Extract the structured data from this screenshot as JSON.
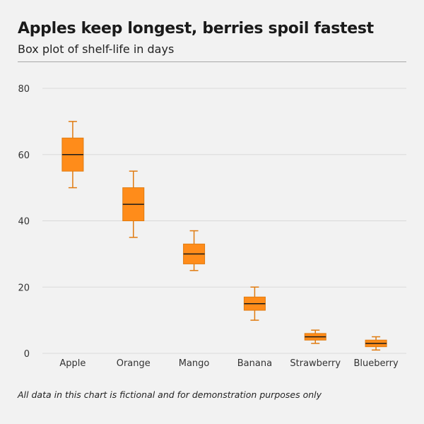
{
  "header": {
    "title": "Apples keep longest, berries spoil fastest",
    "subtitle": "Box plot of shelf-life in days"
  },
  "footnote": "All data in this chart is fictional and for demonstration purposes only",
  "colors": {
    "box_fill": "#ff8c1a",
    "box_stroke": "#e07b10",
    "median": "#1a1a1a",
    "grid": "#d9d9d9"
  },
  "chart_data": {
    "type": "box",
    "title": "Apples keep longest, berries spoil fastest",
    "subtitle": "Box plot of shelf-life in days",
    "xlabel": "",
    "ylabel": "",
    "ylim": [
      0,
      80
    ],
    "yticks": [
      0,
      20,
      40,
      60,
      80
    ],
    "grid": true,
    "categories": [
      "Apple",
      "Orange",
      "Mango",
      "Banana",
      "Strawberry",
      "Blueberry"
    ],
    "series": [
      {
        "name": "Apple",
        "min": 50,
        "q1": 55,
        "median": 60,
        "q3": 65,
        "max": 70
      },
      {
        "name": "Orange",
        "min": 35,
        "q1": 40,
        "median": 45,
        "q3": 50,
        "max": 55
      },
      {
        "name": "Mango",
        "min": 25,
        "q1": 27,
        "median": 30,
        "q3": 33,
        "max": 37
      },
      {
        "name": "Banana",
        "min": 10,
        "q1": 13,
        "median": 15,
        "q3": 17,
        "max": 20
      },
      {
        "name": "Strawberry",
        "min": 3,
        "q1": 4,
        "median": 5,
        "q3": 6,
        "max": 7
      },
      {
        "name": "Blueberry",
        "min": 1,
        "q1": 2,
        "median": 3,
        "q3": 4,
        "max": 5
      }
    ]
  }
}
